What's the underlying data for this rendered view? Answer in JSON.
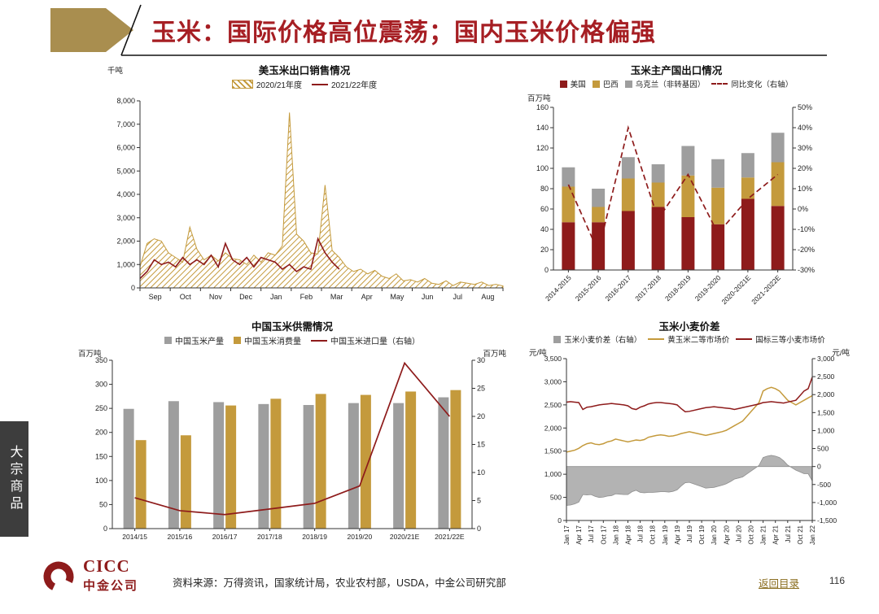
{
  "page": {
    "header_title": "玉米：国际价格高位震荡；国内玉米价格偏强",
    "side_tab": "大宗商品",
    "footer": {
      "logo_text_en": "CICC",
      "logo_text_cn": "中金公司",
      "source": "资料来源：万得资讯，国家统计局，农业农村部，USDA，中金公司研究部",
      "back_link": "返回目录",
      "page_number": "116"
    },
    "colors": {
      "red": "#8E1B1B",
      "gold": "#C49A3C",
      "gray": "#9E9E9E",
      "title_red": "#A61E23",
      "arrow_gold": "#A98E4F",
      "tab_bg": "#3D3D3D",
      "link": "#8A6D1F",
      "axis": "#333333"
    }
  },
  "chart_data": [
    {
      "id": "us-corn-export-sales",
      "type": "line",
      "title": "美玉米出口销售情况",
      "unit_left": "千吨",
      "ylim": [
        0,
        8000
      ],
      "ytick": 1000,
      "x_ticks": [
        "Sep",
        "Oct",
        "Nov",
        "Dec",
        "Jan",
        "Feb",
        "Mar",
        "Apr",
        "May",
        "Jun",
        "Jul",
        "Aug"
      ],
      "series": [
        {
          "name": "2020/21年度",
          "style": "hatched-area",
          "color": "gold",
          "values": [
            900,
            1900,
            2100,
            2000,
            1500,
            1300,
            1100,
            2600,
            1650,
            1200,
            1400,
            1150,
            1500,
            1250,
            1200,
            1000,
            1400,
            1100,
            1500,
            1400,
            1800,
            7500,
            2300,
            2000,
            1500,
            1450,
            4400,
            1600,
            1300,
            900,
            700,
            800,
            600,
            750,
            500,
            400,
            600,
            300,
            350,
            250,
            400,
            200,
            150,
            300,
            100,
            250,
            200,
            150,
            250,
            100,
            150,
            80
          ]
        },
        {
          "name": "2021/22年度",
          "style": "line",
          "color": "red",
          "values": [
            400,
            700,
            1200,
            1000,
            1100,
            900,
            1300,
            1000,
            1200,
            1000,
            1400,
            900,
            1900,
            1200,
            1000,
            1300,
            900,
            1300,
            1200,
            1100,
            800,
            1000,
            700,
            900,
            800,
            2100,
            1500,
            1100,
            800
          ]
        }
      ]
    },
    {
      "id": "corn-major-exporters",
      "type": "bar",
      "title": "玉米主产国出口情况",
      "unit_left": "百万吨",
      "ylim_left": [
        0,
        160
      ],
      "ylim_right": [
        -30,
        50
      ],
      "categories": [
        "2014-2015",
        "2015-2016",
        "2016-2017",
        "2017-2018",
        "2018-2019",
        "2019-2020",
        "2020-2021E",
        "2021-2022E"
      ],
      "stack_series": [
        {
          "name": "美国",
          "color": "red",
          "values": [
            47,
            47,
            58,
            62,
            52,
            45,
            70,
            63
          ]
        },
        {
          "name": "巴西",
          "color": "gold",
          "values": [
            35,
            15,
            32,
            24,
            41,
            36,
            21,
            43
          ]
        },
        {
          "name": "乌克兰（非转基因）",
          "color": "gray",
          "values": [
            19,
            18,
            21,
            18,
            29,
            28,
            24,
            29
          ]
        }
      ],
      "line_series": {
        "name": "同比变化（右轴）",
        "color": "red",
        "axis": "right",
        "values": [
          12,
          -21,
          40,
          -5,
          17,
          -12,
          5,
          17
        ]
      }
    },
    {
      "id": "china-corn-supply-demand",
      "type": "bar",
      "title": "中国玉米供需情况",
      "unit_left": "百万吨",
      "unit_right": "百万吨",
      "ylim_left": [
        0,
        350
      ],
      "ylim_right": [
        0,
        30
      ],
      "categories": [
        "2014/15",
        "2015/16",
        "2016/17",
        "2017/18",
        "2018/19",
        "2019/20",
        "2020/21E",
        "2021/22E"
      ],
      "bar_series": [
        {
          "name": "中国玉米产量",
          "color": "gray",
          "values": [
            249,
            265,
            263,
            259,
            257,
            261,
            261,
            273
          ]
        },
        {
          "name": "中国玉米消费量",
          "color": "gold",
          "values": [
            184,
            194,
            256,
            270,
            280,
            278,
            285,
            288
          ]
        }
      ],
      "line_series": {
        "name": "中国玉米进口量（右轴）",
        "color": "red",
        "axis": "right",
        "values": [
          5.5,
          3.2,
          2.5,
          3.5,
          4.5,
          7.6,
          29.5,
          20
        ]
      }
    },
    {
      "id": "corn-wheat-spread",
      "type": "line",
      "title": "玉米小麦价差",
      "unit_left": "元/吨",
      "unit_right": "元/吨",
      "ylim_left": [
        0,
        3500
      ],
      "ylim_right": [
        -1500,
        3000
      ],
      "x_ticks": [
        "Jan 17",
        "Apr 17",
        "Jul 17",
        "Oct 17",
        "Jan 18",
        "Apr 18",
        "Jul 18",
        "Oct 18",
        "Jan 19",
        "Apr 19",
        "Jul 19",
        "Oct 19",
        "Jan 20",
        "Apr 20",
        "Jul 20",
        "Oct 20",
        "Jan 21",
        "Apr 21",
        "Jul 21",
        "Oct 21",
        "Jan 22"
      ],
      "area_series": {
        "name": "玉米小麦价差（右轴）",
        "color": "gray",
        "axis": "right",
        "values": [
          -1080,
          -1070,
          -1040,
          -990,
          -780,
          -790,
          -780,
          -830,
          -860,
          -850,
          -820,
          -810,
          -760,
          -770,
          -780,
          -780,
          -700,
          -660,
          -720,
          -730,
          -720,
          -720,
          -710,
          -700,
          -700,
          -710,
          -690,
          -650,
          -540,
          -450,
          -440,
          -480,
          -520,
          -560,
          -600,
          -590,
          -580,
          -550,
          -520,
          -480,
          -420,
          -350,
          -320,
          -290,
          -210,
          -130,
          -50,
          30,
          250,
          290,
          310,
          290,
          250,
          160,
          40,
          -30,
          -100,
          -150,
          -200,
          -200,
          -400
        ]
      },
      "line_series": [
        {
          "name": "黄玉米二等市场价",
          "color": "gold",
          "values": [
            1480,
            1500,
            1520,
            1560,
            1620,
            1660,
            1680,
            1650,
            1640,
            1660,
            1700,
            1720,
            1760,
            1740,
            1720,
            1700,
            1720,
            1740,
            1730,
            1750,
            1800,
            1820,
            1840,
            1850,
            1840,
            1820,
            1830,
            1850,
            1880,
            1900,
            1920,
            1900,
            1880,
            1860,
            1840,
            1860,
            1880,
            1900,
            1920,
            1950,
            2000,
            2050,
            2100,
            2150,
            2250,
            2350,
            2450,
            2550,
            2800,
            2850,
            2880,
            2850,
            2800,
            2700,
            2600,
            2550,
            2500,
            2550,
            2600,
            2650,
            2700
          ]
        },
        {
          "name": "国标三等小麦市场价",
          "color": "red",
          "values": [
            2560,
            2570,
            2560,
            2550,
            2400,
            2450,
            2460,
            2480,
            2500,
            2510,
            2520,
            2530,
            2520,
            2510,
            2500,
            2480,
            2420,
            2400,
            2450,
            2480,
            2520,
            2540,
            2550,
            2550,
            2540,
            2530,
            2520,
            2500,
            2420,
            2350,
            2360,
            2380,
            2400,
            2420,
            2440,
            2450,
            2460,
            2450,
            2440,
            2430,
            2420,
            2400,
            2420,
            2440,
            2460,
            2480,
            2500,
            2520,
            2550,
            2560,
            2570,
            2560,
            2550,
            2540,
            2560,
            2580,
            2600,
            2700,
            2800,
            2850,
            3100
          ]
        }
      ]
    }
  ]
}
